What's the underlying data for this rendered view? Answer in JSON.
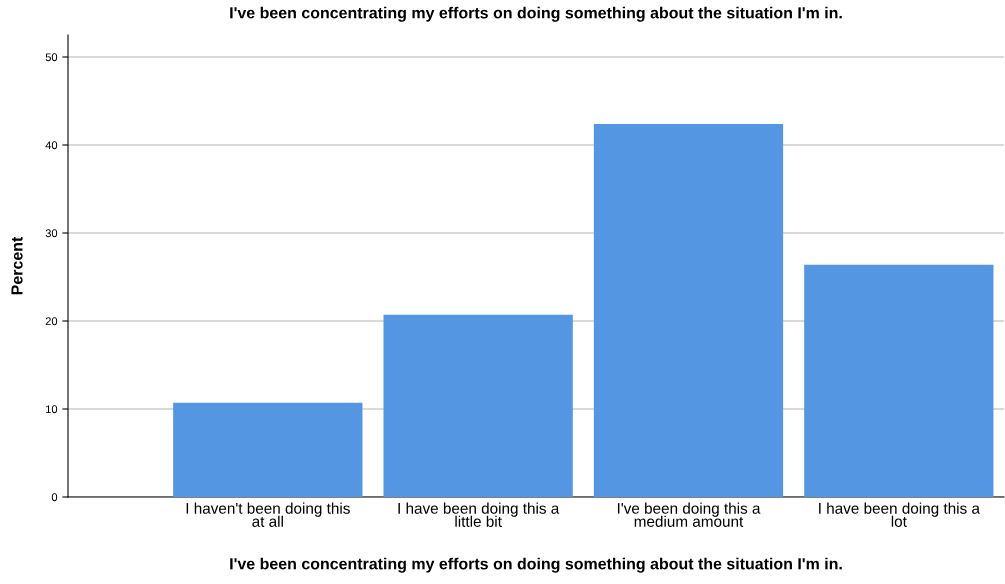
{
  "chart_data": {
    "type": "bar",
    "title": "I've been concentrating my efforts on doing something about the situation I'm in.",
    "xlabel": "I've been concentrating my efforts on doing something about the situation I'm in.",
    "ylabel": "Percent",
    "categories": [
      "I haven't been doing this\nat all",
      "I have been doing this a\nlittle bit",
      "I've been doing this a\nmedium amount",
      "I have been doing this a\nlot"
    ],
    "values": [
      10.7,
      20.7,
      42.4,
      26.4
    ],
    "color": "#5596e3",
    "ylim": [
      0,
      52.5
    ],
    "yticks": [
      0,
      10,
      20,
      30,
      40,
      50
    ],
    "grid": "y"
  }
}
